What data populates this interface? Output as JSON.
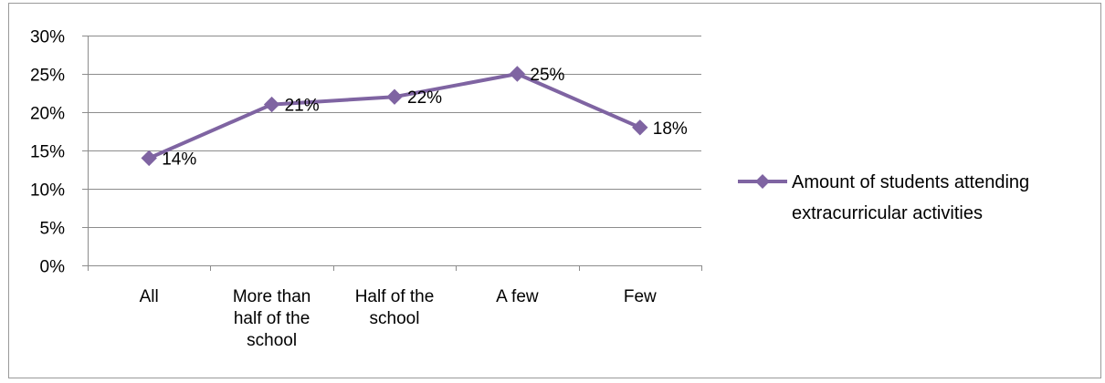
{
  "chart_data": {
    "type": "line",
    "categories": [
      [
        "All"
      ],
      [
        "More than",
        "half of the",
        "school"
      ],
      [
        "Half of the",
        "school"
      ],
      [
        "A few"
      ],
      [
        "Few"
      ]
    ],
    "series": [
      {
        "name_lines": [
          "Amount of students attending",
          "extracurricular activities"
        ],
        "values": [
          14,
          21,
          22,
          25,
          18
        ],
        "labels": [
          "14%",
          "21%",
          "22%",
          "25%",
          "18%"
        ]
      }
    ],
    "ylim": [
      0,
      30
    ],
    "yticks": [
      0,
      5,
      10,
      15,
      20,
      25,
      30
    ],
    "ytick_labels": [
      "0%",
      "5%",
      "10%",
      "15%",
      "20%",
      "25%",
      "30%"
    ],
    "grid": true,
    "legend_position": "right",
    "title": "",
    "xlabel": "",
    "ylabel": "",
    "colors": {
      "series": "#7f64a2",
      "grid": "#8c8c8c",
      "axis": "#8c8c8c"
    },
    "marker": "diamond"
  }
}
